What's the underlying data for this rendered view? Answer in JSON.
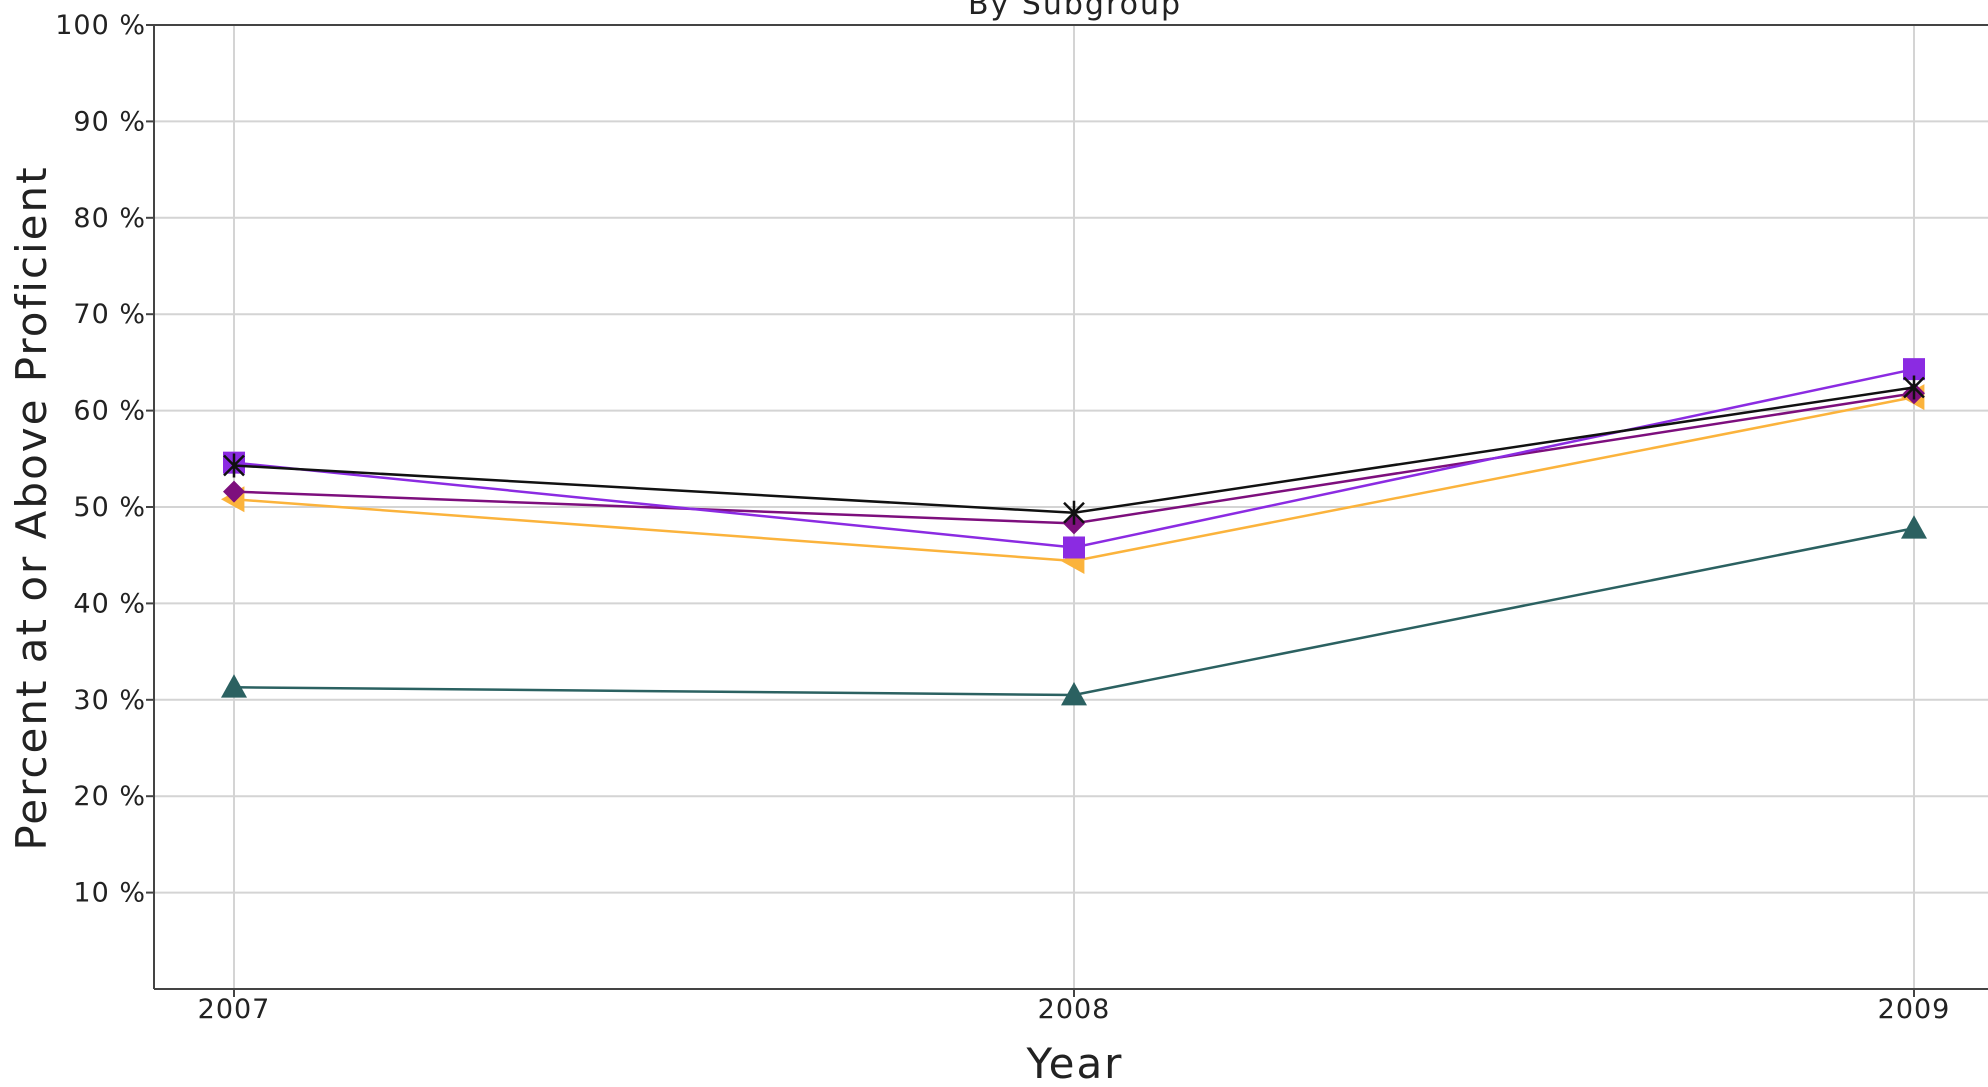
{
  "chart_data": {
    "type": "line",
    "title": "By Subgroup",
    "xlabel": "Year",
    "ylabel": "Percent at or Above Proficient",
    "categories": [
      "2007",
      "2008",
      "2009"
    ],
    "ylim": [
      0,
      100
    ],
    "y_ticks": [
      10,
      20,
      30,
      40,
      50,
      60,
      70,
      80,
      90,
      100
    ],
    "y_tick_labels": [
      "10 %",
      "20 %",
      "30 %",
      "40 %",
      "50 %",
      "60 %",
      "70 %",
      "80 %",
      "90 %",
      "100 %"
    ],
    "grid": true,
    "legend": "none",
    "series": [
      {
        "values": [
          31.3,
          30.5,
          47.8
        ],
        "color": "#2b6161",
        "marker": "triangle-up"
      },
      {
        "values": [
          50.8,
          44.4,
          61.4
        ],
        "color": "#fbb33c",
        "marker": "triangle-left"
      },
      {
        "values": [
          51.6,
          48.3,
          61.8
        ],
        "color": "#7d0f7d",
        "marker": "diamond"
      },
      {
        "values": [
          54.6,
          45.8,
          64.3
        ],
        "color": "#8b2be2",
        "marker": "square"
      },
      {
        "values": [
          54.3,
          49.4,
          62.4
        ],
        "color": "#111111",
        "marker": "star"
      }
    ]
  }
}
